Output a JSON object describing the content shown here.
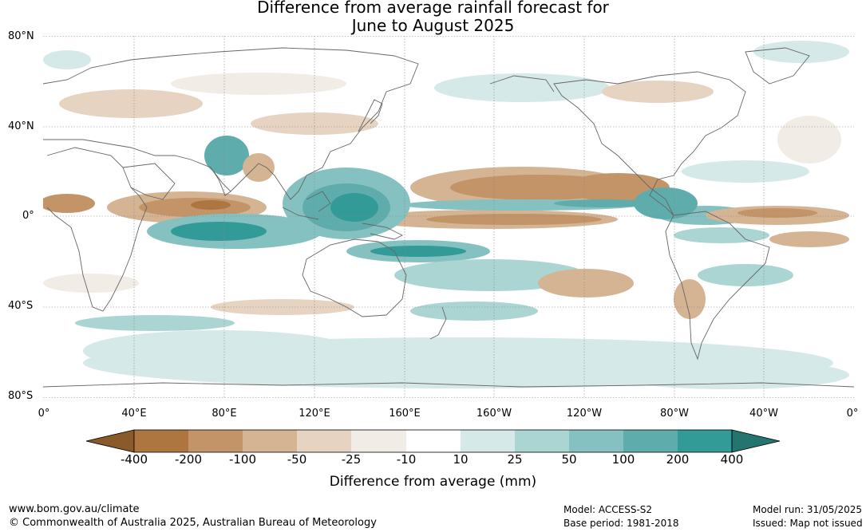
{
  "title_line1": "Difference from average rainfall forecast for",
  "title_line2": "June to August 2025",
  "lat_labels": [
    "80°N",
    "40°N",
    "0°",
    "40°S",
    "80°S"
  ],
  "lon_labels": [
    "0°",
    "40°E",
    "80°E",
    "120°E",
    "160°E",
    "160°W",
    "120°W",
    "80°W",
    "40°W",
    "0°"
  ],
  "legend": {
    "title": "Difference from average (mm)",
    "ticks": [
      "-400",
      "-200",
      "-100",
      "-50",
      "-25",
      "-10",
      "10",
      "25",
      "50",
      "100",
      "200",
      "400"
    ],
    "colors": [
      "#8a5a2b",
      "#ad7640",
      "#c29468",
      "#d5b494",
      "#e6d3c1",
      "#f2ece6",
      "#ffffff",
      "#d5e9e8",
      "#aad5d3",
      "#84c1c0",
      "#5eadac",
      "#339b97",
      "#247570"
    ]
  },
  "footer": {
    "website": "www.bom.gov.au/climate",
    "copyright": "© Commonwealth of Australia 2025, Australian Bureau of Meteorology",
    "model": "Model: ACCESS-S2",
    "base_period": "Base period: 1981-2018",
    "model_run": "Model run: 31/05/2025",
    "issued": "Issued: Map not issued"
  }
}
